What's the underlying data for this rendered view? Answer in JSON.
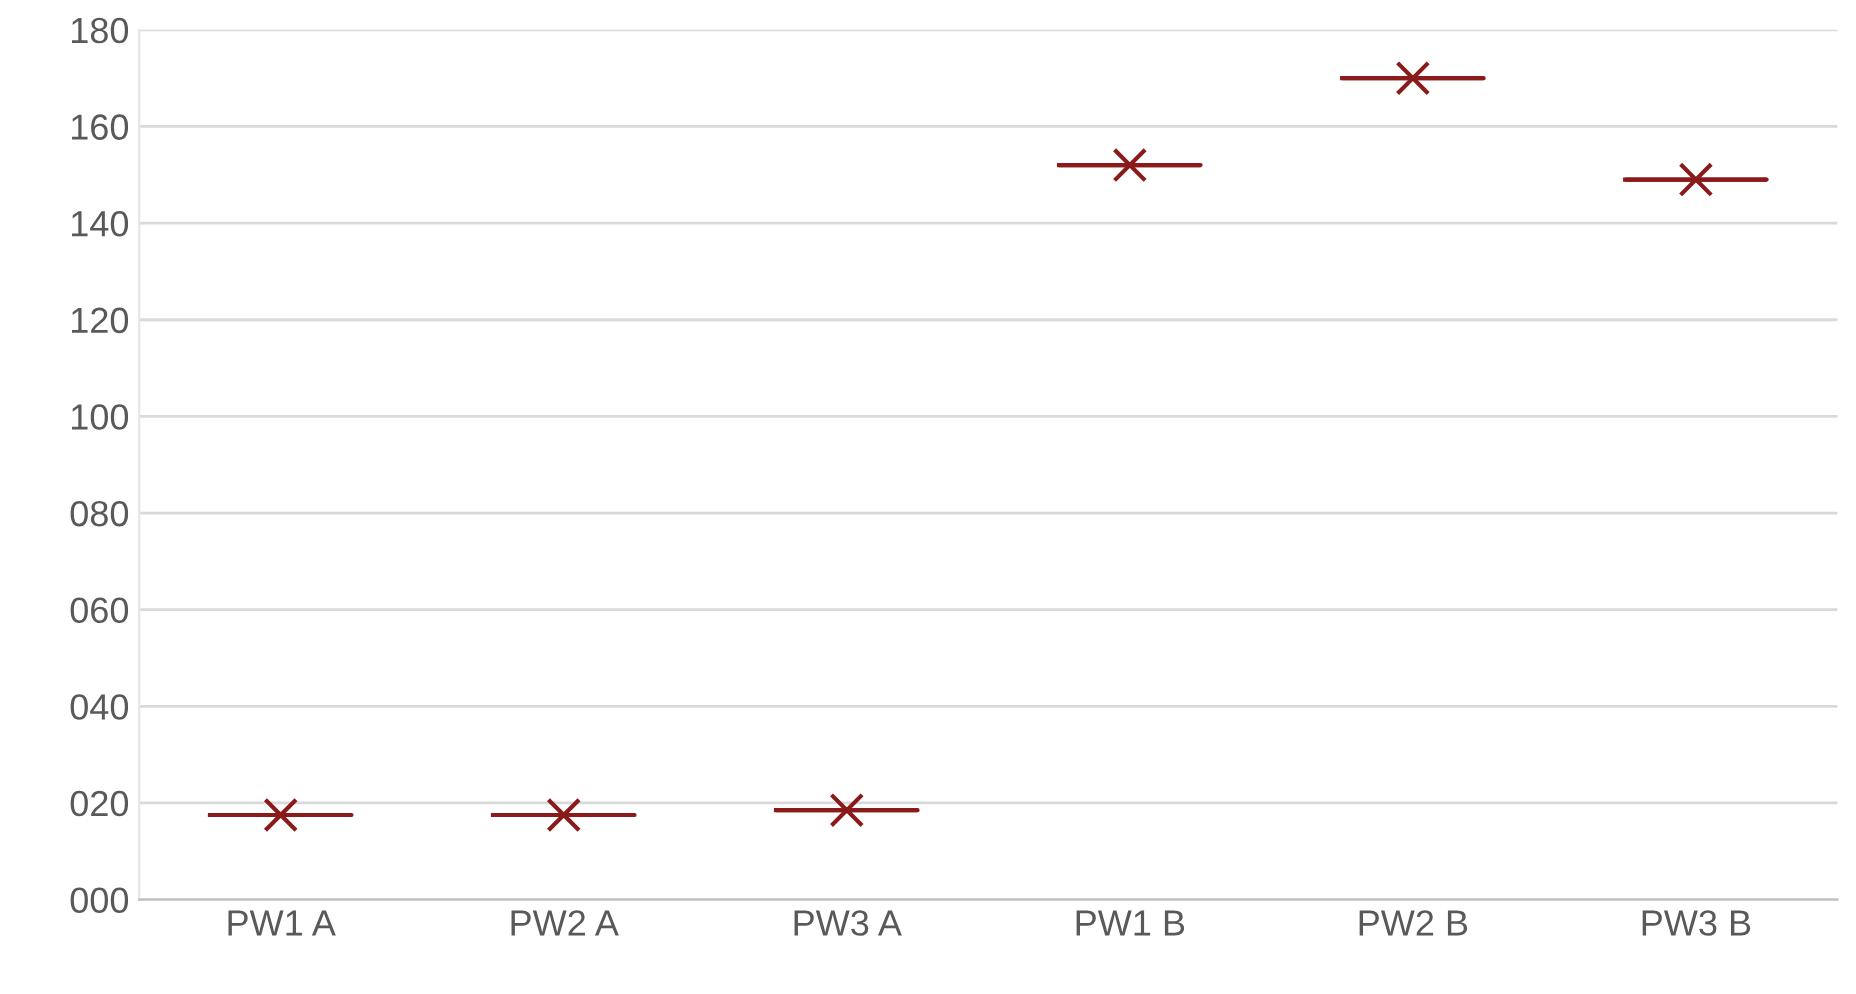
{
  "chart_data": {
    "type": "box",
    "categories": [
      "PW1 A",
      "PW2 A",
      "PW3 A",
      "PW1 B",
      "PW2 B",
      "PW3 B"
    ],
    "boxes": [
      {
        "low": 17.5,
        "q1": 17.5,
        "median": 17.5,
        "q3": 17.5,
        "high": 17.5,
        "mean": 17.5
      },
      {
        "low": 17.5,
        "q1": 17.5,
        "median": 17.5,
        "q3": 17.5,
        "high": 17.5,
        "mean": 17.5
      },
      {
        "low": 18.5,
        "q1": 18.5,
        "median": 18.5,
        "q3": 18.5,
        "high": 18.5,
        "mean": 18.5
      },
      {
        "low": 152,
        "q1": 152,
        "median": 152,
        "q3": 152,
        "high": 152,
        "mean": 152
      },
      {
        "low": 170,
        "q1": 170,
        "median": 170,
        "q3": 170,
        "high": 170,
        "mean": 170
      },
      {
        "low": 149,
        "q1": 149,
        "median": 149,
        "q3": 149,
        "high": 149,
        "mean": 149
      }
    ],
    "color": "#8b1a1a",
    "marker": "cross",
    "ylim": [
      0,
      180
    ],
    "yticks": [
      {
        "value": 0,
        "label": "000"
      },
      {
        "value": 20,
        "label": "020"
      },
      {
        "value": 40,
        "label": "040"
      },
      {
        "value": 60,
        "label": "060"
      },
      {
        "value": 80,
        "label": "080"
      },
      100,
      120,
      140,
      160,
      180
    ],
    "grid": "y"
  }
}
